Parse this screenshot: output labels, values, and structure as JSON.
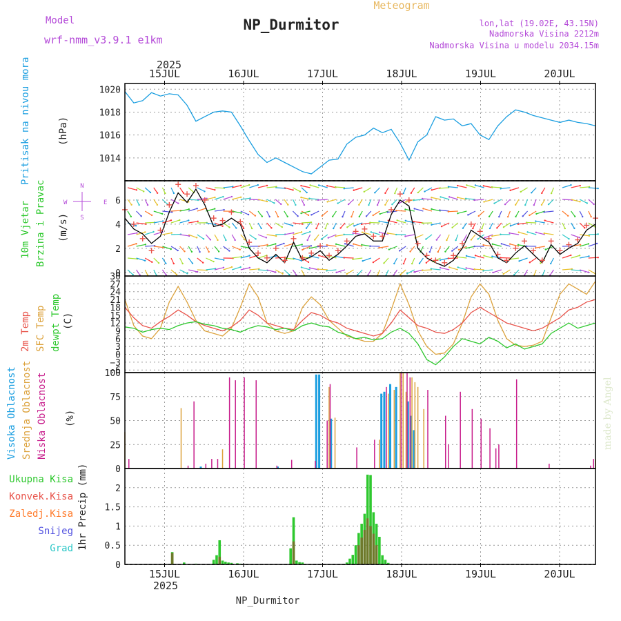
{
  "header": {
    "model_label": "Model",
    "model_name": "wrf-nmm_v3.9.1  e1km",
    "meteogram_label": "Meteogram",
    "station_title": "NP_Durmitor",
    "coords": "lon,lat (19.02E, 43.15N)",
    "elevation": "Nadmorska Visina 2212m",
    "model_elevation": "Nadmorska Visina u modelu 2034.15m",
    "year": "2025",
    "footer_station": "NP_Durmitor",
    "watermark": "made by Angel"
  },
  "colors": {
    "pressure": "#1a9ee0",
    "temp2m": "#e8534a",
    "sfc_temp": "#dca23c",
    "dewpoint": "#2ec82e",
    "high_cloud": "#1a9ee0",
    "mid_cloud": "#dca23c",
    "low_cloud": "#c81e8c",
    "total_precip": "#2ec82e",
    "conv_precip": "#e8534a",
    "frozen_precip": "#ff7a2a",
    "snow": "#5050e0",
    "graupel": "#2ec8c8",
    "wind_speed": "#000000",
    "gust": "#e8534a",
    "violet": "#b44ad8"
  },
  "chart_data": [
    {
      "type": "line",
      "panel": "pressure",
      "ylabel": "(hPa)",
      "side_label": "Pritisak na nivou mora",
      "x_ticks": [
        "15JUL",
        "16JUL",
        "17JUL",
        "18JUL",
        "19JUL",
        "20JUL"
      ],
      "yticks": [
        1014,
        1016,
        1018,
        1020
      ],
      "ylim": [
        1012,
        1020.5
      ],
      "grid": true,
      "x_hours": [
        0,
        3,
        6,
        9,
        12,
        15,
        18,
        21,
        24,
        27,
        30,
        33,
        36,
        39,
        42,
        45,
        48,
        51,
        54,
        57,
        60,
        63,
        66,
        69,
        72,
        75,
        78,
        81,
        84,
        87,
        90,
        93,
        96,
        99,
        102,
        105,
        108,
        111,
        114,
        117,
        120,
        123,
        126,
        129,
        132,
        135,
        138,
        141,
        144,
        147,
        150,
        153,
        156,
        159
      ],
      "series": [
        {
          "name": "Pritisak na nivou mora",
          "values": [
            1019.8,
            1018.8,
            1019.0,
            1019.7,
            1019.4,
            1019.6,
            1019.5,
            1018.6,
            1017.2,
            1017.6,
            1018.0,
            1018.1,
            1018.0,
            1016.8,
            1015.5,
            1014.3,
            1013.6,
            1014.0,
            1013.6,
            1013.2,
            1012.8,
            1012.6,
            1013.2,
            1013.8,
            1013.9,
            1015.2,
            1015.8,
            1016.0,
            1016.6,
            1016.2,
            1016.5,
            1015.3,
            1013.8,
            1015.4,
            1016.0,
            1017.6,
            1017.3,
            1017.4,
            1016.8,
            1017.0,
            1016.0,
            1015.6,
            1016.8,
            1017.6,
            1018.2,
            1018.0,
            1017.7,
            1017.5,
            1017.3,
            1017.1,
            1017.3,
            1017.1,
            1017.0,
            1016.8
          ]
        }
      ]
    },
    {
      "type": "line",
      "panel": "wind",
      "ylabel": "(m/s)",
      "side_label": [
        "10m Vjetar",
        "Brzina i Pravac"
      ],
      "compass": {
        "north": "N",
        "south": "S",
        "west": "W",
        "east": "E"
      },
      "yticks": [
        0,
        2,
        4,
        6
      ],
      "ylim": [
        -0.3,
        7.6
      ],
      "grid": true,
      "x_hours": [
        0,
        3,
        6,
        9,
        12,
        15,
        18,
        21,
        24,
        27,
        30,
        33,
        36,
        39,
        42,
        45,
        48,
        51,
        54,
        57,
        60,
        63,
        66,
        69,
        72,
        75,
        78,
        81,
        84,
        87,
        90,
        93,
        96,
        99,
        102,
        105,
        108,
        111,
        114,
        117,
        120,
        123,
        126,
        129,
        132,
        135,
        138,
        141,
        144,
        147,
        150,
        153,
        156,
        159
      ],
      "series": [
        {
          "name": "Brzina",
          "values": [
            4.5,
            3.6,
            3.2,
            2.4,
            3.0,
            5.0,
            6.6,
            5.8,
            6.9,
            5.6,
            3.8,
            4.0,
            4.5,
            4.0,
            2.0,
            1.2,
            0.8,
            1.5,
            0.8,
            2.5,
            1.0,
            1.3,
            1.8,
            1.0,
            1.5,
            2.2,
            3.0,
            3.2,
            2.6,
            2.6,
            4.8,
            6.0,
            5.5,
            2.0,
            1.2,
            0.8,
            0.5,
            1.0,
            2.0,
            3.5,
            3.0,
            2.5,
            1.2,
            0.8,
            1.6,
            2.2,
            1.5,
            0.8,
            2.3,
            1.5,
            2.0,
            2.4,
            3.5,
            4.0
          ]
        },
        {
          "name": "Udari",
          "values": [
            5.2,
            4.0,
            2.8,
            1.8,
            3.5,
            5.6,
            7.3,
            6.5,
            7.2,
            6.0,
            4.5,
            4.3,
            5.0,
            4.2,
            2.5,
            1.6,
            1.2,
            2.0,
            1.0,
            2.8,
            1.2,
            1.6,
            2.2,
            1.4,
            1.8,
            2.6,
            3.4,
            3.6,
            3.0,
            3.0,
            5.2,
            6.5,
            6.0,
            2.4,
            1.4,
            1.0,
            0.8,
            1.4,
            2.4,
            4.0,
            3.4,
            2.8,
            1.5,
            1.0,
            2.0,
            2.6,
            1.8,
            1.0,
            2.6,
            1.8,
            2.3,
            2.7,
            3.9,
            4.5
          ]
        }
      ]
    },
    {
      "type": "line",
      "panel": "temperature",
      "ylabel": "(C)",
      "side_label": [
        "2m Temp",
        "SFC Temp",
        "dewpt Temp"
      ],
      "yticks": [
        -6,
        -3,
        0,
        3,
        6,
        9,
        12,
        15,
        18,
        21,
        24,
        27,
        30
      ],
      "ylim": [
        -7,
        30
      ],
      "grid": true,
      "x_hours": [
        0,
        3,
        6,
        9,
        12,
        15,
        18,
        21,
        24,
        27,
        30,
        33,
        36,
        39,
        42,
        45,
        48,
        51,
        54,
        57,
        60,
        63,
        66,
        69,
        72,
        75,
        78,
        81,
        84,
        87,
        90,
        93,
        96,
        99,
        102,
        105,
        108,
        111,
        114,
        117,
        120,
        123,
        126,
        129,
        132,
        135,
        138,
        141,
        144,
        147,
        150,
        153,
        156,
        159
      ],
      "series": [
        {
          "name": "2m Temp",
          "values": [
            18.0,
            14.0,
            11.0,
            10.0,
            12.5,
            14.5,
            17.0,
            15.0,
            12.5,
            11.0,
            10.0,
            9.0,
            10.5,
            13.0,
            17.0,
            15.0,
            12.0,
            11.0,
            10.0,
            9.5,
            13.0,
            16.0,
            15.0,
            13.0,
            12.0,
            10.0,
            9.0,
            8.0,
            7.0,
            8.0,
            12.0,
            17.0,
            14.0,
            11.0,
            10.0,
            8.5,
            8.0,
            9.5,
            12.0,
            16.0,
            18.0,
            16.0,
            14.0,
            12.0,
            11.0,
            10.0,
            9.0,
            10.0,
            12.0,
            14.0,
            17.0,
            18.0,
            20.0,
            21.0
          ]
        },
        {
          "name": "SFC Temp",
          "values": [
            21.0,
            11.0,
            7.0,
            6.0,
            10.0,
            20.0,
            26.0,
            20.0,
            13.0,
            9.0,
            8.0,
            7.0,
            10.0,
            18.0,
            27.0,
            22.0,
            12.0,
            9.0,
            8.0,
            9.0,
            18.0,
            22.0,
            19.0,
            13.0,
            10.0,
            7.0,
            6.0,
            5.0,
            5.0,
            8.0,
            17.0,
            27.0,
            19.0,
            9.0,
            3.0,
            0.0,
            0.5,
            4.0,
            12.0,
            22.0,
            27.0,
            23.0,
            13.0,
            6.0,
            3.5,
            3.0,
            3.5,
            5.0,
            14.0,
            23.0,
            27.0,
            25.0,
            23.0,
            28.0
          ]
        },
        {
          "name": "dewpt Temp",
          "values": [
            10.5,
            10.0,
            8.5,
            9.5,
            10.0,
            9.5,
            11.0,
            12.0,
            12.5,
            11.5,
            11.0,
            10.0,
            9.5,
            8.5,
            10.0,
            11.0,
            10.5,
            9.5,
            10.0,
            9.0,
            11.0,
            12.0,
            11.0,
            10.5,
            8.5,
            7.5,
            6.0,
            6.5,
            5.5,
            6.0,
            8.5,
            10.0,
            8.0,
            4.0,
            -2.0,
            -4.0,
            -1.0,
            3.0,
            6.0,
            5.0,
            4.0,
            6.5,
            5.0,
            2.5,
            4.0,
            2.0,
            3.0,
            4.0,
            8.0,
            10.0,
            12.0,
            10.0,
            11.0,
            12.0
          ]
        }
      ]
    },
    {
      "type": "bar",
      "panel": "clouds",
      "ylabel": "(%)",
      "side_label": [
        "Visoka Oblacnost",
        "Srednja Oblacnost",
        "Niska Oblacnost"
      ],
      "yticks": [
        0,
        25,
        50,
        75,
        100
      ],
      "ylim": [
        0,
        100
      ],
      "grid": true,
      "series": [
        {
          "name": "Visoka Oblacnost",
          "bars": [
            [
              26,
              2
            ],
            [
              52,
              2
            ],
            [
              65,
              98
            ],
            [
              66,
              98
            ],
            [
              70,
              52
            ],
            [
              87,
              78
            ],
            [
              88,
              80
            ],
            [
              90,
              88
            ],
            [
              92,
              85
            ],
            [
              96,
              70
            ],
            [
              97,
              55
            ],
            [
              98,
              40
            ]
          ]
        },
        {
          "name": "Srednja Oblacnost",
          "bars": [
            [
              0,
              38
            ],
            [
              19,
              63
            ],
            [
              33,
              20
            ],
            [
              69,
              85
            ],
            [
              71,
              53
            ],
            [
              86,
              30
            ],
            [
              89,
              78
            ],
            [
              91,
              82
            ],
            [
              93,
              100
            ],
            [
              94,
              100
            ],
            [
              95,
              80
            ],
            [
              97,
              95
            ],
            [
              98,
              90
            ],
            [
              99,
              85
            ],
            [
              101,
              62
            ],
            [
              159,
              10
            ]
          ]
        },
        {
          "name": "Niska Oblacnost",
          "bars": [
            [
              1,
              10
            ],
            [
              27,
              5
            ],
            [
              21,
              3
            ],
            [
              23,
              70
            ],
            [
              29,
              10
            ],
            [
              31,
              10
            ],
            [
              35,
              95
            ],
            [
              37,
              92
            ],
            [
              40,
              95
            ],
            [
              44,
              92
            ],
            [
              51,
              3
            ],
            [
              56,
              9
            ],
            [
              64,
              8
            ],
            [
              68,
              50
            ],
            [
              69,
              88
            ],
            [
              78,
              22
            ],
            [
              84,
              30
            ],
            [
              88,
              85
            ],
            [
              93,
              100
            ],
            [
              95,
              100
            ],
            [
              96,
              95
            ],
            [
              102,
              82
            ],
            [
              108,
              55
            ],
            [
              109,
              25
            ],
            [
              113,
              80
            ],
            [
              117,
              62
            ],
            [
              120,
              52
            ],
            [
              123,
              42
            ],
            [
              125,
              21
            ],
            [
              126,
              25
            ],
            [
              132,
              93
            ],
            [
              143,
              5
            ],
            [
              157,
              3
            ],
            [
              158,
              10
            ]
          ]
        }
      ]
    },
    {
      "type": "bar",
      "panel": "precipitation",
      "ylabel": "1hr Precip (mm)",
      "side_label": [
        "Ukupna Kisa",
        "Konvek.Kisa",
        "Zaledj.Kisa",
        "Snijeg",
        "Grad"
      ],
      "x_ticks": [
        "15JUL",
        "16JUL",
        "17JUL",
        "18JUL",
        "19JUL",
        "20JUL"
      ],
      "yticks": [
        0,
        0.5,
        1,
        1.5,
        2
      ],
      "ylim": [
        0,
        2.5
      ],
      "grid": true,
      "series": [
        {
          "name": "Ukupna Kisa",
          "bars": [
            [
              16,
              0.32
            ],
            [
              20,
              0.05
            ],
            [
              24,
              0.02
            ],
            [
              30,
              0.12
            ],
            [
              31,
              0.24
            ],
            [
              32,
              0.63
            ],
            [
              33,
              0.1
            ],
            [
              34,
              0.07
            ],
            [
              35,
              0.05
            ],
            [
              36,
              0.04
            ],
            [
              38,
              0.03
            ],
            [
              39,
              0.02
            ],
            [
              56,
              0.42
            ],
            [
              57,
              1.23
            ],
            [
              58,
              0.1
            ],
            [
              59,
              0.06
            ],
            [
              60,
              0.05
            ],
            [
              75,
              0.05
            ],
            [
              76,
              0.15
            ],
            [
              77,
              0.25
            ],
            [
              78,
              0.5
            ],
            [
              79,
              0.82
            ],
            [
              80,
              1.06
            ],
            [
              81,
              1.32
            ],
            [
              82,
              2.34
            ],
            [
              83,
              2.33
            ],
            [
              84,
              1.36
            ],
            [
              85,
              1.06
            ],
            [
              86,
              0.72
            ],
            [
              87,
              0.24
            ],
            [
              88,
              0.12
            ],
            [
              89,
              0.04
            ]
          ]
        },
        {
          "name": "Konvek.Kisa",
          "bars": [
            [
              16,
              0.3
            ],
            [
              32,
              0.2
            ],
            [
              57,
              0.6
            ],
            [
              79,
              0.5
            ],
            [
              80,
              0.7
            ],
            [
              81,
              0.9
            ],
            [
              82,
              1.2
            ],
            [
              83,
              1.0
            ],
            [
              84,
              0.8
            ],
            [
              85,
              0.5
            ]
          ]
        }
      ]
    }
  ]
}
